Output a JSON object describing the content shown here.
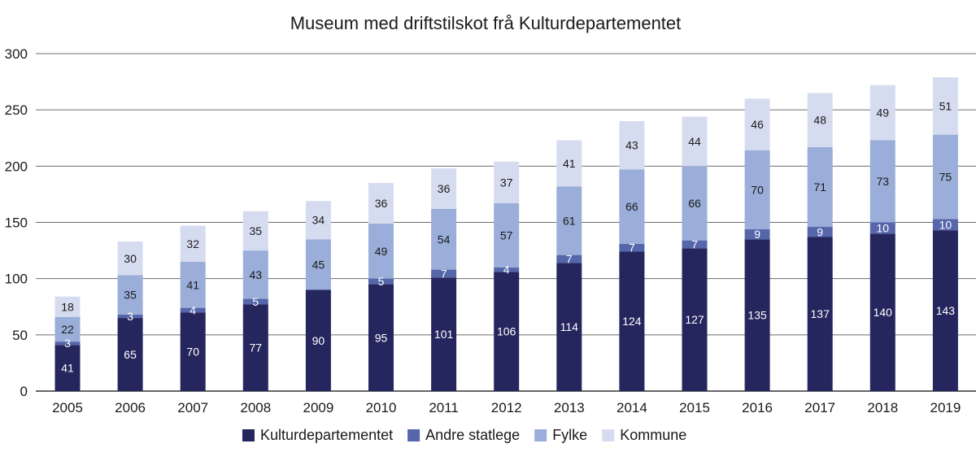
{
  "chart_data": {
    "type": "bar",
    "stacked": true,
    "title": "Museum med driftstilskot frå Kulturdepartementet",
    "xlabel": "",
    "ylabel": "",
    "categories": [
      "2005",
      "2006",
      "2007",
      "2008",
      "2009",
      "2010",
      "2011",
      "2012",
      "2013",
      "2014",
      "2015",
      "2016",
      "2017",
      "2018",
      "2019"
    ],
    "ylim": [
      0,
      300
    ],
    "yticks": [
      0,
      50,
      100,
      150,
      200,
      250,
      300
    ],
    "grid": true,
    "legend_position": "bottom",
    "series": [
      {
        "name": "Kulturdepartementet",
        "color": "#25265e",
        "label_color": "#ffffff",
        "values": [
          41,
          65,
          70,
          77,
          90,
          95,
          101,
          106,
          114,
          124,
          127,
          135,
          137,
          140,
          143
        ]
      },
      {
        "name": "Andre statlege",
        "color": "#5566aa",
        "label_color": "#ffffff",
        "values": [
          3,
          3,
          4,
          5,
          0,
          5,
          7,
          4,
          7,
          7,
          7,
          9,
          9,
          10,
          10
        ]
      },
      {
        "name": "Fylke",
        "color": "#9aaed9",
        "label_color": "#1a1a1a",
        "values": [
          22,
          35,
          41,
          43,
          45,
          49,
          54,
          57,
          61,
          66,
          66,
          70,
          71,
          73,
          75
        ]
      },
      {
        "name": "Kommune",
        "color": "#d6dcf0",
        "label_color": "#1a1a1a",
        "values": [
          18,
          30,
          32,
          35,
          34,
          36,
          36,
          37,
          41,
          43,
          44,
          46,
          48,
          49,
          51
        ]
      }
    ]
  }
}
